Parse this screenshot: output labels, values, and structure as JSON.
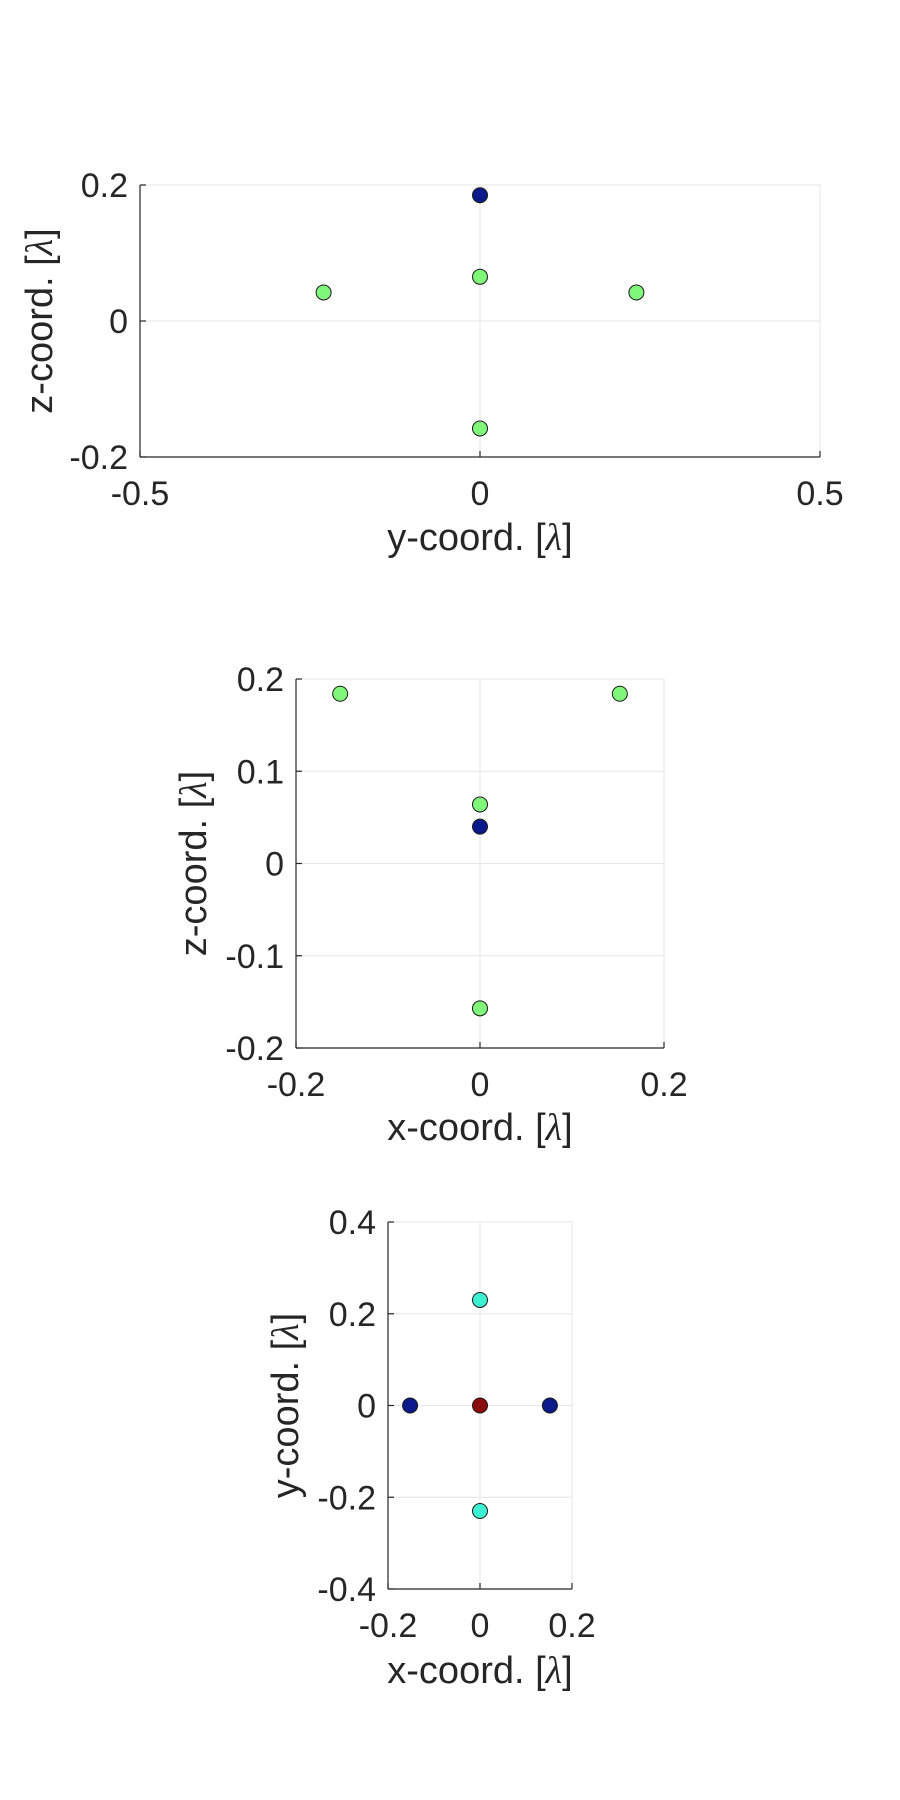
{
  "colors": {
    "grid": "#e6e6e6",
    "axis": "#262626",
    "text": "#262626",
    "marker_edge": "#1a1a1a",
    "light-green": "#80f77a",
    "dark-blue": "#0a1a8a",
    "cyan": "#3ef0d2",
    "dark-red": "#8b0d0d"
  },
  "chart_data": [
    {
      "type": "scatter",
      "xlabel": "y-coord. [λ]",
      "ylabel": "z-coord. [λ]",
      "xlabel_parts": [
        "y-coord. [",
        "λ",
        "]"
      ],
      "ylabel_parts": [
        "z-coord. [",
        "λ",
        "]"
      ],
      "xlim": [
        -0.5,
        0.5
      ],
      "ylim": [
        -0.2,
        0.2
      ],
      "xticks": [
        -0.5,
        0,
        0.5
      ],
      "yticks": [
        -0.2,
        0,
        0.2
      ],
      "xtick_labels": [
        "-0.5",
        "0",
        "0.5"
      ],
      "ytick_labels": [
        "-0.2",
        "0",
        "0.2"
      ],
      "grid": true,
      "points": [
        {
          "x": 0,
          "y": 0.185,
          "color": "dark-blue"
        },
        {
          "x": 0,
          "y": 0.065,
          "color": "light-green"
        },
        {
          "x": -0.23,
          "y": 0.042,
          "color": "light-green"
        },
        {
          "x": 0.23,
          "y": 0.042,
          "color": "light-green"
        },
        {
          "x": 0,
          "y": -0.158,
          "color": "light-green"
        }
      ]
    },
    {
      "type": "scatter",
      "xlabel": "x-coord. [λ]",
      "ylabel": "z-coord. [λ]",
      "xlabel_parts": [
        "x-coord. [",
        "λ",
        "]"
      ],
      "ylabel_parts": [
        "z-coord. [",
        "λ",
        "]"
      ],
      "xlim": [
        -0.2,
        0.2
      ],
      "ylim": [
        -0.2,
        0.2
      ],
      "xticks": [
        -0.2,
        0,
        0.2
      ],
      "yticks": [
        -0.2,
        -0.1,
        0,
        0.1,
        0.2
      ],
      "xtick_labels": [
        "-0.2",
        "0",
        "0.2"
      ],
      "ytick_labels": [
        "-0.2",
        "-0.1",
        "0",
        "0.1",
        "0.2"
      ],
      "grid": true,
      "points": [
        {
          "x": -0.152,
          "y": 0.184,
          "color": "light-green"
        },
        {
          "x": 0.152,
          "y": 0.184,
          "color": "light-green"
        },
        {
          "x": 0,
          "y": 0.064,
          "color": "light-green"
        },
        {
          "x": 0,
          "y": 0.04,
          "color": "dark-blue"
        },
        {
          "x": 0,
          "y": -0.157,
          "color": "light-green"
        }
      ]
    },
    {
      "type": "scatter",
      "xlabel": "x-coord. [λ]",
      "ylabel": "y-coord. [λ]",
      "xlabel_parts": [
        "x-coord. [",
        "λ",
        "]"
      ],
      "ylabel_parts": [
        "y-coord. [",
        "λ",
        "]"
      ],
      "xlim": [
        -0.2,
        0.2
      ],
      "ylim": [
        -0.4,
        0.4
      ],
      "xticks": [
        -0.2,
        0,
        0.2
      ],
      "yticks": [
        -0.4,
        -0.2,
        0,
        0.2,
        0.4
      ],
      "xtick_labels": [
        "-0.2",
        "0",
        "0.2"
      ],
      "ytick_labels": [
        "-0.4",
        "-0.2",
        "0",
        "0.2",
        "0.4"
      ],
      "grid": true,
      "points": [
        {
          "x": 0,
          "y": 0.23,
          "color": "cyan"
        },
        {
          "x": -0.152,
          "y": 0,
          "color": "dark-blue"
        },
        {
          "x": 0,
          "y": 0,
          "color": "dark-red"
        },
        {
          "x": 0.152,
          "y": 0,
          "color": "dark-blue"
        },
        {
          "x": 0,
          "y": -0.23,
          "color": "cyan"
        }
      ]
    }
  ]
}
